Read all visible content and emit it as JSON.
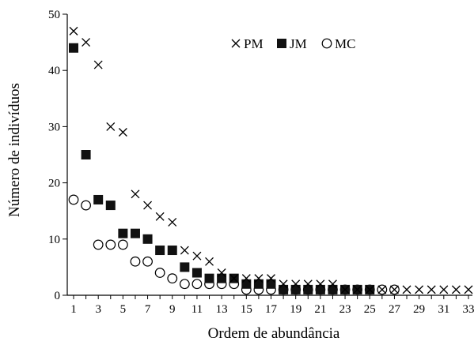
{
  "chart_data": {
    "type": "scatter",
    "title": "",
    "xlabel": "Ordem de abundância",
    "ylabel": "Número de indivíduos",
    "xlim": [
      1,
      33
    ],
    "ylim": [
      0,
      50
    ],
    "x_ticks": [
      "1",
      "3",
      "5",
      "7",
      "9",
      "11",
      "13",
      "15",
      "17",
      "19",
      "21",
      "23",
      "25",
      "27",
      "29",
      "31",
      "33"
    ],
    "y_ticks": [
      "0",
      "10",
      "20",
      "30",
      "40",
      "50"
    ],
    "grid": false,
    "legend_position": "top-right",
    "series": [
      {
        "name": "PM",
        "marker": "x",
        "x": [
          1,
          2,
          3,
          4,
          5,
          6,
          7,
          8,
          9,
          10,
          11,
          12,
          13,
          14,
          15,
          16,
          17,
          18,
          19,
          20,
          21,
          22,
          23,
          24,
          25,
          26,
          27,
          28,
          29,
          30,
          31,
          32,
          33
        ],
        "y": [
          47,
          45,
          41,
          30,
          29,
          18,
          16,
          14,
          13,
          8,
          7,
          6,
          4,
          3,
          3,
          3,
          3,
          2,
          2,
          2,
          2,
          2,
          1,
          1,
          1,
          1,
          1,
          1,
          1,
          1,
          1,
          1,
          1
        ]
      },
      {
        "name": "JM",
        "marker": "filled-square",
        "x": [
          1,
          2,
          3,
          4,
          5,
          6,
          7,
          8,
          9,
          10,
          11,
          12,
          13,
          14,
          15,
          16,
          17,
          18,
          19,
          20,
          21,
          22,
          23,
          24,
          25
        ],
        "y": [
          44,
          25,
          17,
          16,
          11,
          11,
          10,
          8,
          8,
          5,
          4,
          3,
          3,
          3,
          2,
          2,
          2,
          1,
          1,
          1,
          1,
          1,
          1,
          1,
          1
        ]
      },
      {
        "name": "MC",
        "marker": "open-circle",
        "x": [
          1,
          2,
          3,
          4,
          5,
          6,
          7,
          8,
          9,
          10,
          11,
          12,
          13,
          14,
          15,
          16,
          17,
          18,
          19,
          20,
          21,
          22,
          23,
          24,
          25,
          26,
          27
        ],
        "y": [
          17,
          16,
          9,
          9,
          9,
          6,
          6,
          4,
          3,
          2,
          2,
          2,
          2,
          2,
          1,
          1,
          1,
          1,
          1,
          1,
          1,
          1,
          1,
          1,
          1,
          1,
          1
        ]
      }
    ]
  }
}
